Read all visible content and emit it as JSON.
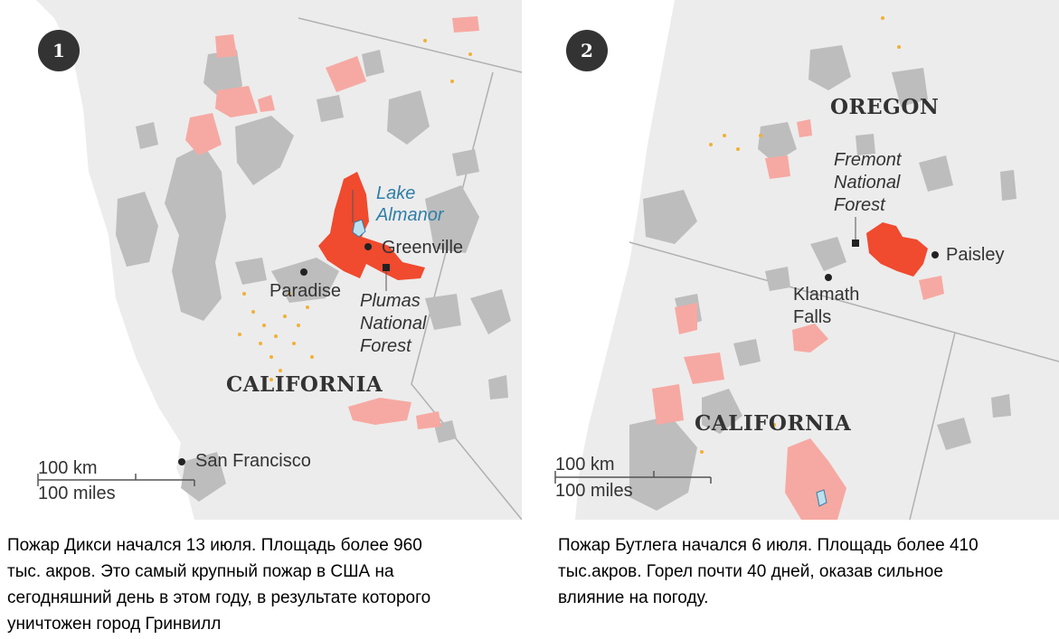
{
  "colors": {
    "land": "#ececec",
    "burned_area": "#bdbdbd",
    "past_fire": "#f6a9a2",
    "active_fire": "#f04a2f",
    "fire_dot": "#f2b036",
    "lake": "#2f7ea8",
    "border": "#b0b0b0",
    "label": "#333333"
  },
  "map1": {
    "badge": "1",
    "state_label": "CALIFORNIA",
    "lake_label": "Lake\nAlmanor",
    "places": {
      "greenville": "Greenville",
      "paradise": "Paradise",
      "san_francisco": "San Francisco"
    },
    "forest_label": "Plumas\nNational\nForest",
    "scale": {
      "km": "100 km",
      "miles": "100 miles"
    }
  },
  "map2": {
    "badge": "2",
    "state_labels": {
      "oregon": "OREGON",
      "california": "CALIFORNIA"
    },
    "forest_label": "Fremont\nNational\nForest",
    "places": {
      "paisley": "Paisley",
      "klamath_falls": "Klamath\nFalls"
    },
    "scale": {
      "km": "100 km",
      "miles": "100 miles"
    }
  },
  "captions": {
    "left": "Пожар  Дикси начался 13 июля. Площадь  более 960\nтыс. акров. Это самый крупный пожар в США на\nсегодняшний день в этом году, в результате которого\nуничтожен  город Гринвилл",
    "right": "Пожар Бутлега начался 6 июля. Площадь более 410\nтыс.акров. Горел почти 40 дней, оказав сильное\nвлияние на погоду."
  }
}
